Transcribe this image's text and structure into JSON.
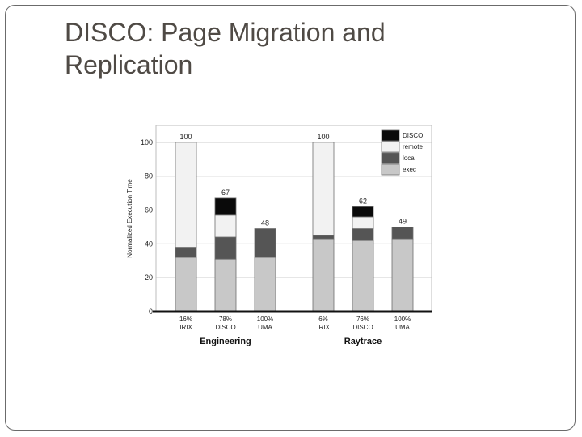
{
  "slide": {
    "title_line1": "DISCO: Page Migration and",
    "title_line2": "Replication"
  },
  "chart_data": {
    "type": "bar",
    "stacked": true,
    "ylabel": "Normalized Execution Time",
    "ylim": [
      0,
      110
    ],
    "yticks": [
      0,
      20,
      40,
      60,
      80,
      100
    ],
    "grid": true,
    "legend_position": "top-right",
    "segments": [
      {
        "name": "exec",
        "color": "#c8c8c8"
      },
      {
        "name": "local",
        "color": "#555555"
      },
      {
        "name": "remote",
        "color": "#f2f2f2"
      },
      {
        "name": "DISCO",
        "color": "#0a0a0a"
      }
    ],
    "groups": [
      {
        "label": "Engineering",
        "bars": [
          {
            "label1": "16%",
            "label2": "IRIX",
            "total": "100",
            "exec": 32,
            "local": 6,
            "remote": 62,
            "DISCO": 0
          },
          {
            "label1": "78%",
            "label2": "DISCO",
            "total": "67",
            "exec": 31,
            "local": 13,
            "remote": 13,
            "DISCO": 10
          },
          {
            "label1": "100%",
            "label2": "UMA",
            "total": "48",
            "exec": 32,
            "local": 17,
            "remote": 0,
            "DISCO": 0
          }
        ]
      },
      {
        "label": "Raytrace",
        "bars": [
          {
            "label1": "6%",
            "label2": "IRIX",
            "total": "100",
            "exec": 43,
            "local": 2,
            "remote": 55,
            "DISCO": 0
          },
          {
            "label1": "76%",
            "label2": "DISCO",
            "total": "62",
            "exec": 42,
            "local": 7,
            "remote": 7,
            "DISCO": 6
          },
          {
            "label1": "100%",
            "label2": "UMA",
            "total": "49",
            "exec": 43,
            "local": 7,
            "remote": 0,
            "DISCO": 0
          }
        ]
      }
    ]
  }
}
